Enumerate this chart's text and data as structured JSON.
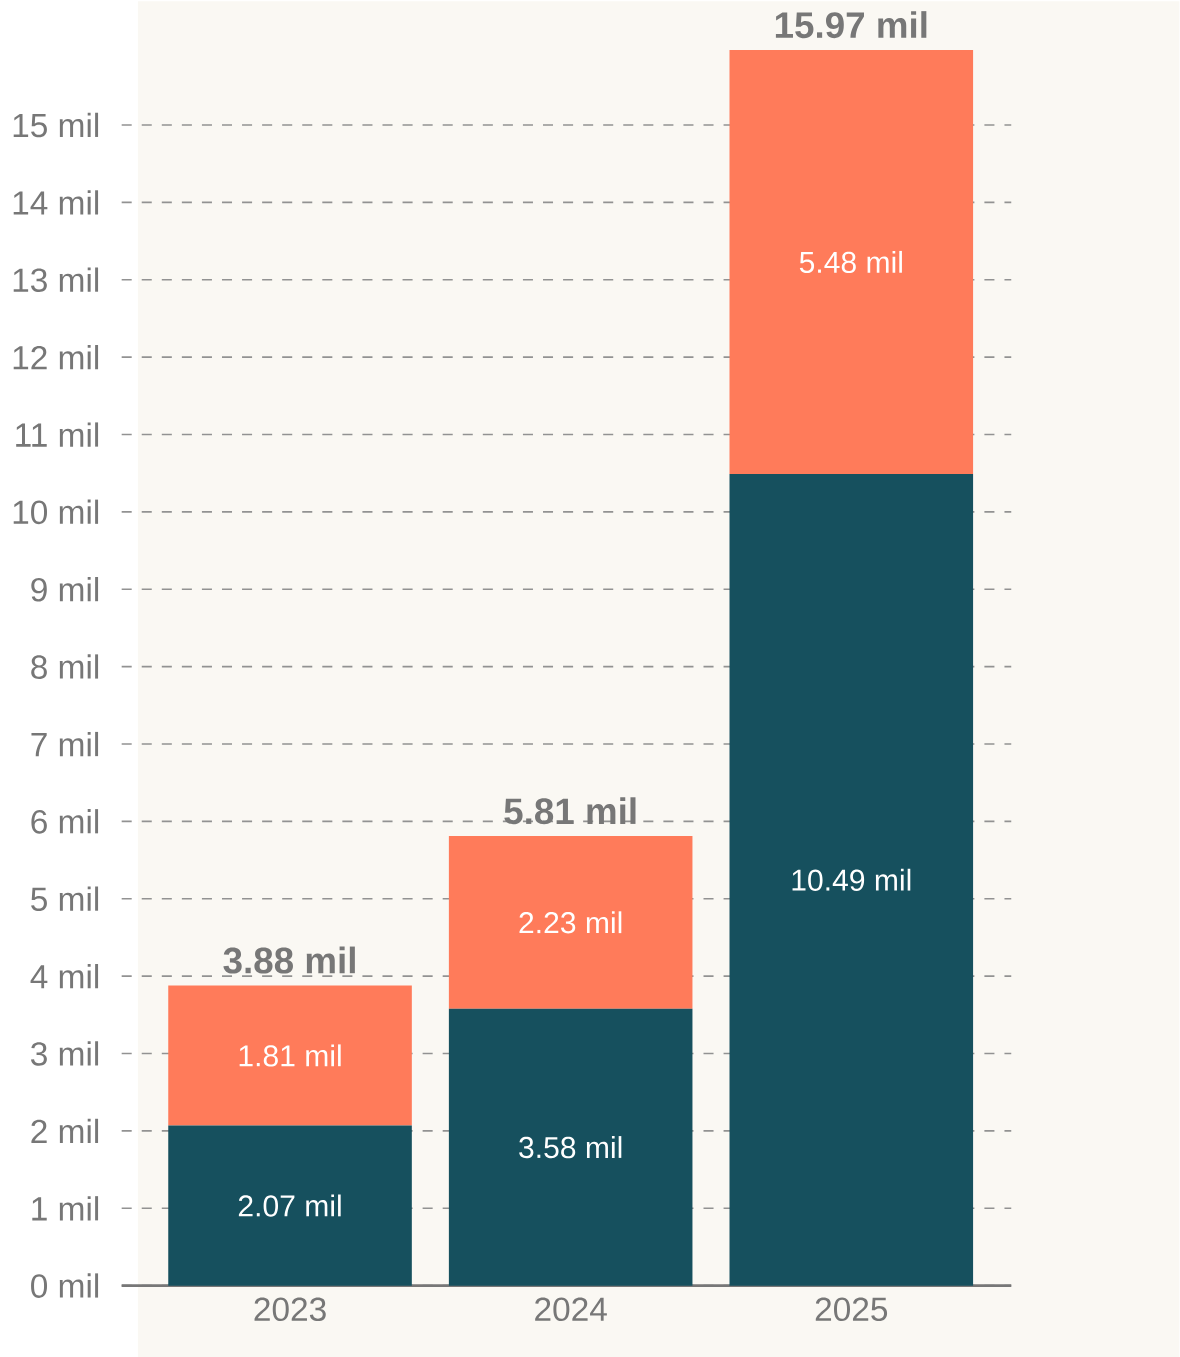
{
  "chart_data": {
    "type": "bar",
    "stacked": true,
    "categories": [
      "2023",
      "2024",
      "2025"
    ],
    "series": [
      {
        "color": "#16505e",
        "values": [
          2.07,
          3.58,
          10.49
        ],
        "value_labels": [
          "2.07 mil",
          "3.58 mil",
          "10.49 mil"
        ]
      },
      {
        "color": "#ff7b5a",
        "values": [
          1.81,
          2.23,
          5.48
        ],
        "value_labels": [
          "1.81 mil",
          "2.23 mil",
          "5.48 mil"
        ]
      }
    ],
    "totals": [
      "3.88 mil",
      "5.81 mil",
      "15.97 mil"
    ],
    "ylim": [
      0,
      16.6
    ],
    "yticks": [
      {
        "value": 0,
        "label": "0 mil"
      },
      {
        "value": 1,
        "label": "1 mil"
      },
      {
        "value": 2,
        "label": "2 mil"
      },
      {
        "value": 3,
        "label": "3 mil"
      },
      {
        "value": 4,
        "label": "4 mil"
      },
      {
        "value": 5,
        "label": "5 mil"
      },
      {
        "value": 6,
        "label": "6 mil"
      },
      {
        "value": 7,
        "label": "7 mil"
      },
      {
        "value": 8,
        "label": "8 mil"
      },
      {
        "value": 9,
        "label": "9 mil"
      },
      {
        "value": 10,
        "label": "10 mil"
      },
      {
        "value": 11,
        "label": "11 mil"
      },
      {
        "value": 12,
        "label": "12 mil"
      },
      {
        "value": 13,
        "label": "13 mil"
      },
      {
        "value": 14,
        "label": "14 mil"
      },
      {
        "value": 15,
        "label": "15 mil"
      }
    ],
    "grid": "y"
  }
}
